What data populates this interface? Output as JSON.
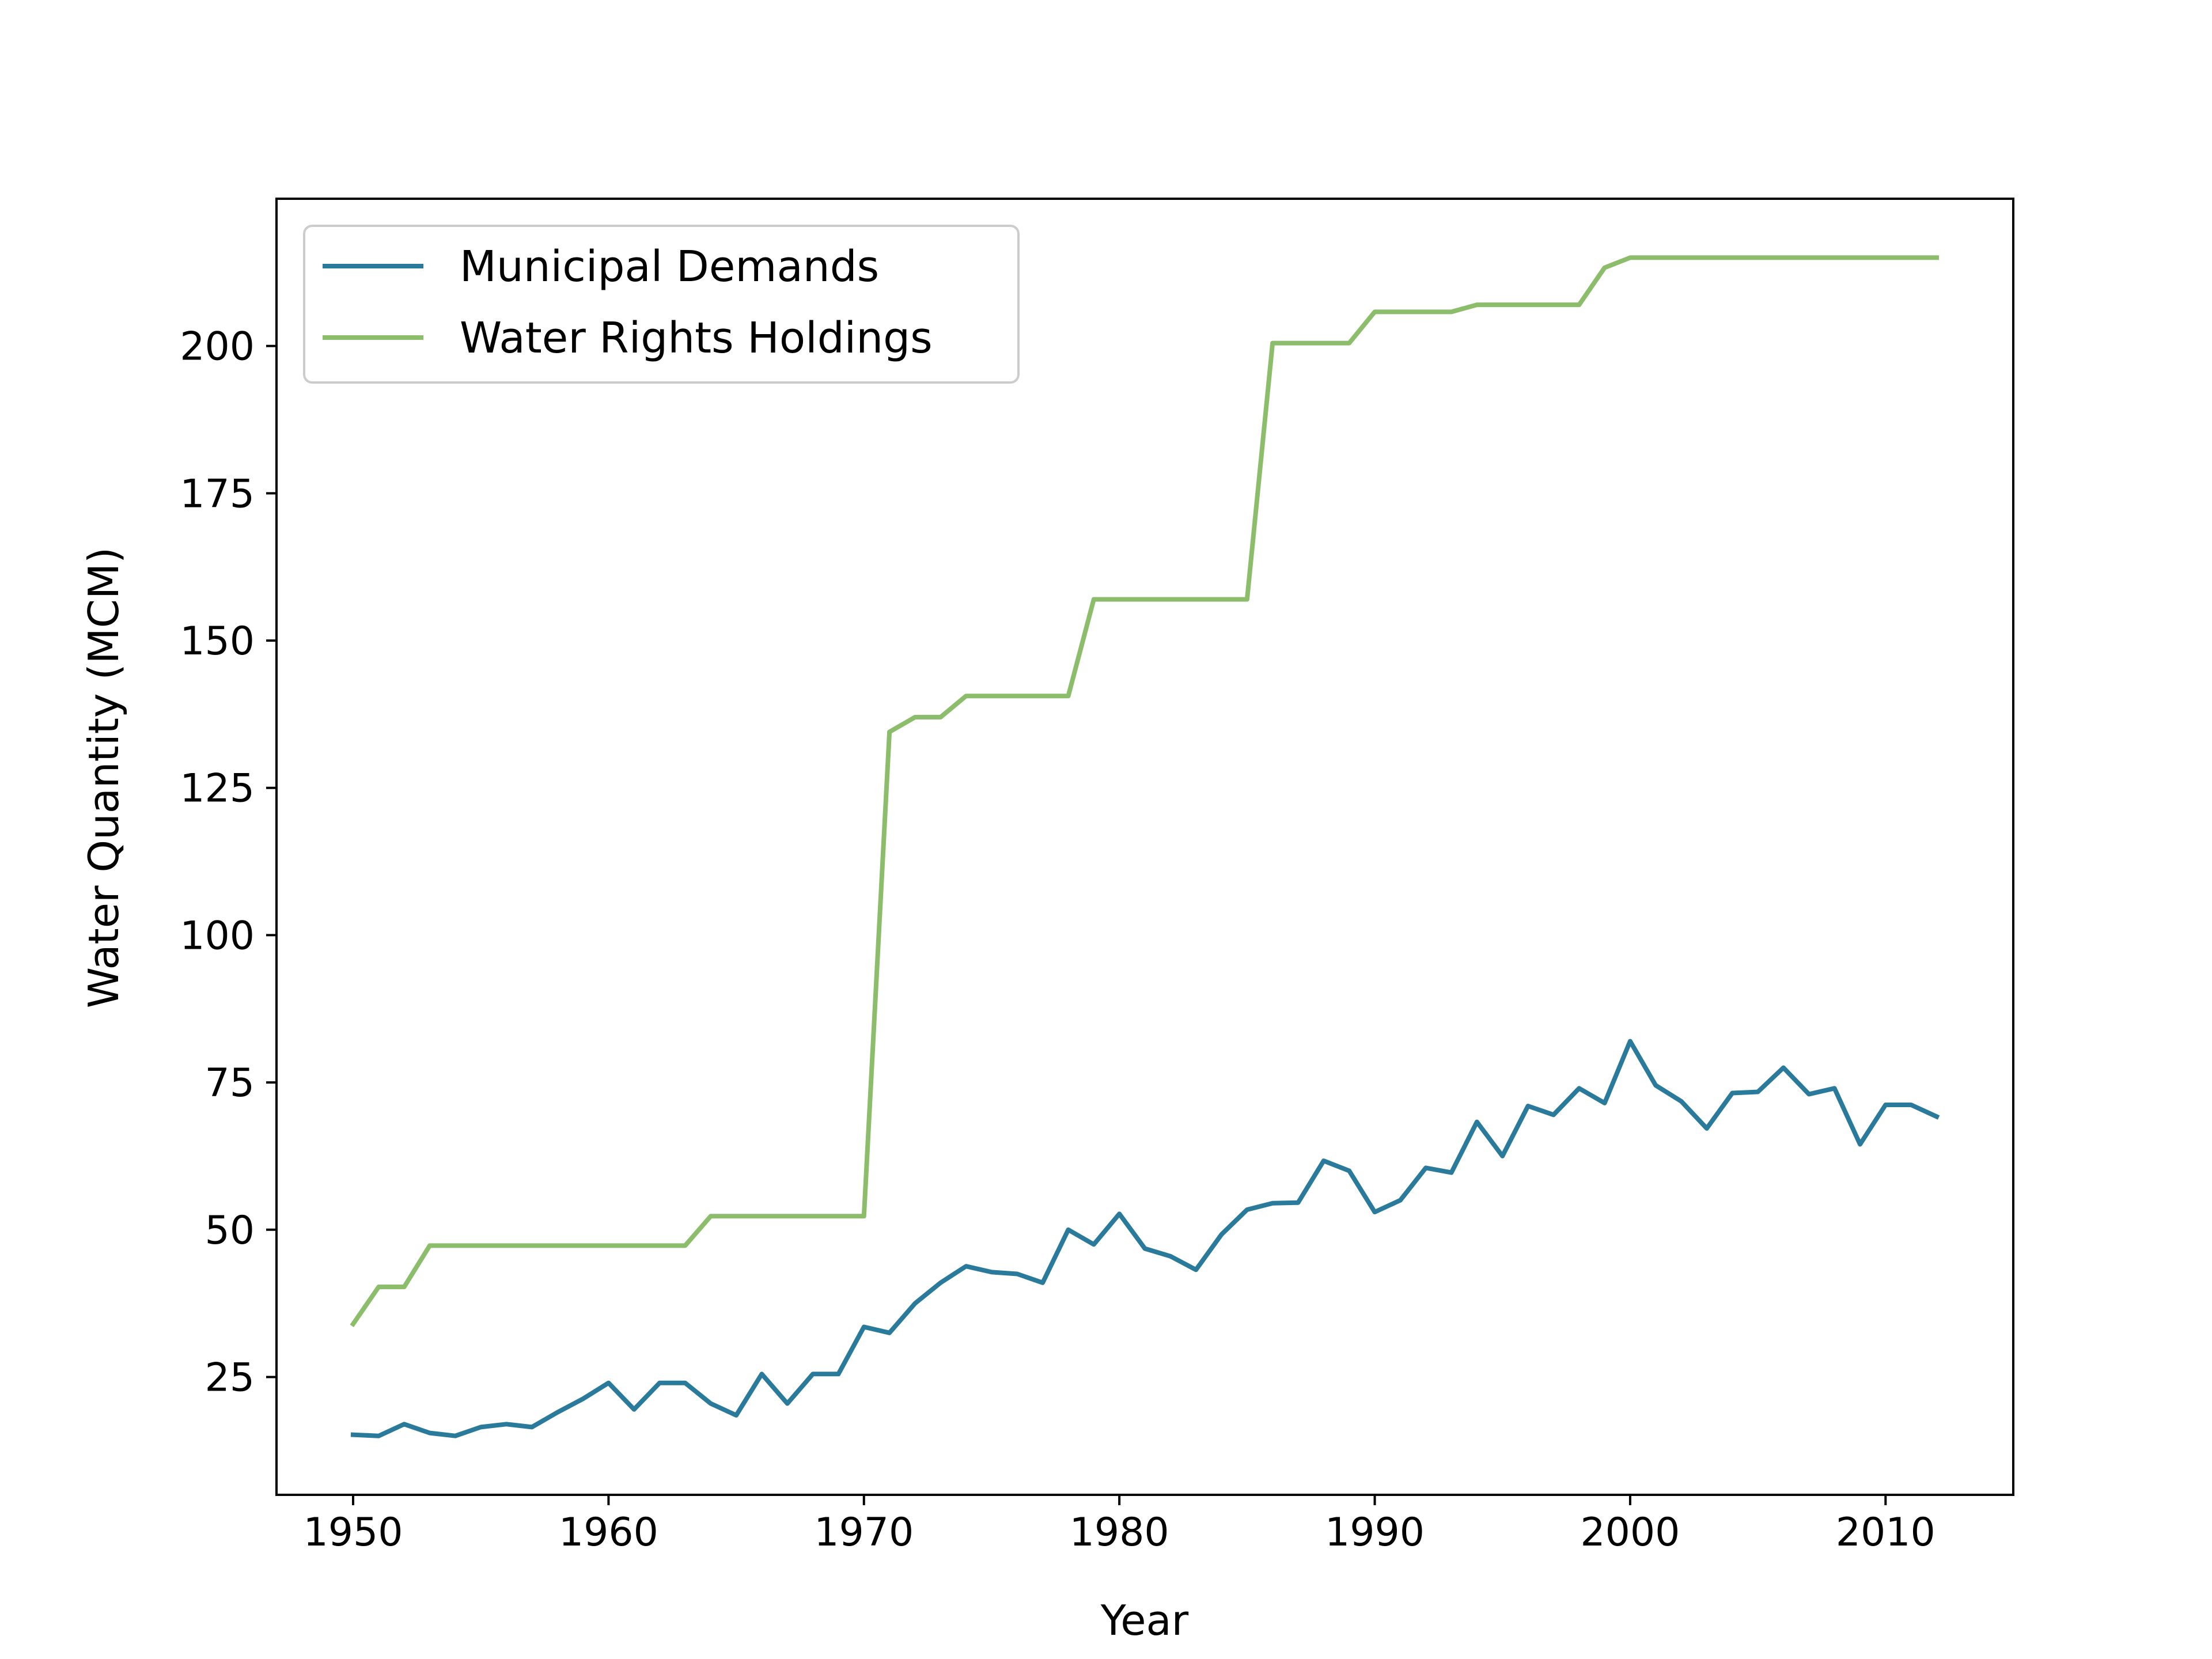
{
  "chart_data": {
    "type": "line",
    "title": "",
    "xlabel": "Year",
    "ylabel": "Water Quantity (MCM)",
    "xlim": [
      1947,
      2015
    ],
    "ylim": [
      5,
      225
    ],
    "xticks": [
      1950,
      1960,
      1970,
      1980,
      1990,
      2000,
      2010
    ],
    "yticks": [
      25,
      50,
      75,
      100,
      125,
      150,
      175,
      200
    ],
    "grid": false,
    "legend_position": "top-left",
    "x": [
      1950,
      1951,
      1952,
      1953,
      1954,
      1955,
      1956,
      1957,
      1958,
      1959,
      1960,
      1961,
      1962,
      1963,
      1964,
      1965,
      1966,
      1967,
      1968,
      1969,
      1970,
      1971,
      1972,
      1973,
      1974,
      1975,
      1976,
      1977,
      1978,
      1979,
      1980,
      1981,
      1982,
      1983,
      1984,
      1985,
      1986,
      1987,
      1988,
      1989,
      1990,
      1991,
      1992,
      1993,
      1994,
      1995,
      1996,
      1997,
      1998,
      1999,
      2000,
      2001,
      2002,
      2003,
      2004,
      2005,
      2006,
      2007,
      2008,
      2009,
      2010,
      2011,
      2012
    ],
    "series": [
      {
        "name": "Municipal Demands",
        "color": "#2a7b9b",
        "values": [
          15.2,
          15.0,
          17.0,
          15.5,
          15.0,
          16.5,
          17.0,
          16.5,
          19.0,
          21.3,
          24.0,
          19.5,
          24.0,
          24.0,
          20.5,
          18.5,
          25.5,
          20.5,
          25.5,
          25.5,
          33.5,
          32.5,
          37.5,
          41.0,
          43.8,
          42.8,
          42.5,
          41.0,
          50.0,
          47.5,
          52.7,
          46.8,
          45.5,
          43.2,
          49.2,
          53.4,
          54.5,
          54.6,
          61.7,
          60.0,
          53.0,
          55.0,
          60.5,
          59.7,
          68.3,
          62.5,
          71.0,
          69.5,
          74.0,
          71.5,
          82.0,
          74.5,
          71.8,
          67.2,
          73.2,
          73.4,
          77.5,
          73.0,
          74.0,
          64.5,
          71.2,
          71.2,
          69.2
        ]
      },
      {
        "name": "Water Rights Holdings",
        "color": "#8bbd6a",
        "values": [
          34.0,
          40.3,
          40.3,
          47.3,
          47.3,
          47.3,
          47.3,
          47.3,
          47.3,
          47.3,
          47.3,
          47.3,
          47.3,
          47.3,
          52.3,
          52.3,
          52.3,
          52.3,
          52.3,
          52.3,
          52.3,
          134.5,
          137.0,
          137.0,
          140.6,
          140.6,
          140.6,
          140.6,
          140.6,
          157.0,
          157.0,
          157.0,
          157.0,
          157.0,
          157.0,
          157.0,
          200.5,
          200.5,
          200.5,
          200.5,
          205.8,
          205.8,
          205.8,
          205.8,
          207.0,
          207.0,
          207.0,
          207.0,
          207.0,
          213.3,
          215.0,
          215.0,
          215.0,
          215.0,
          215.0,
          215.0,
          215.0,
          215.0,
          215.0,
          215.0,
          215.0,
          215.0,
          215.0
        ]
      }
    ]
  }
}
